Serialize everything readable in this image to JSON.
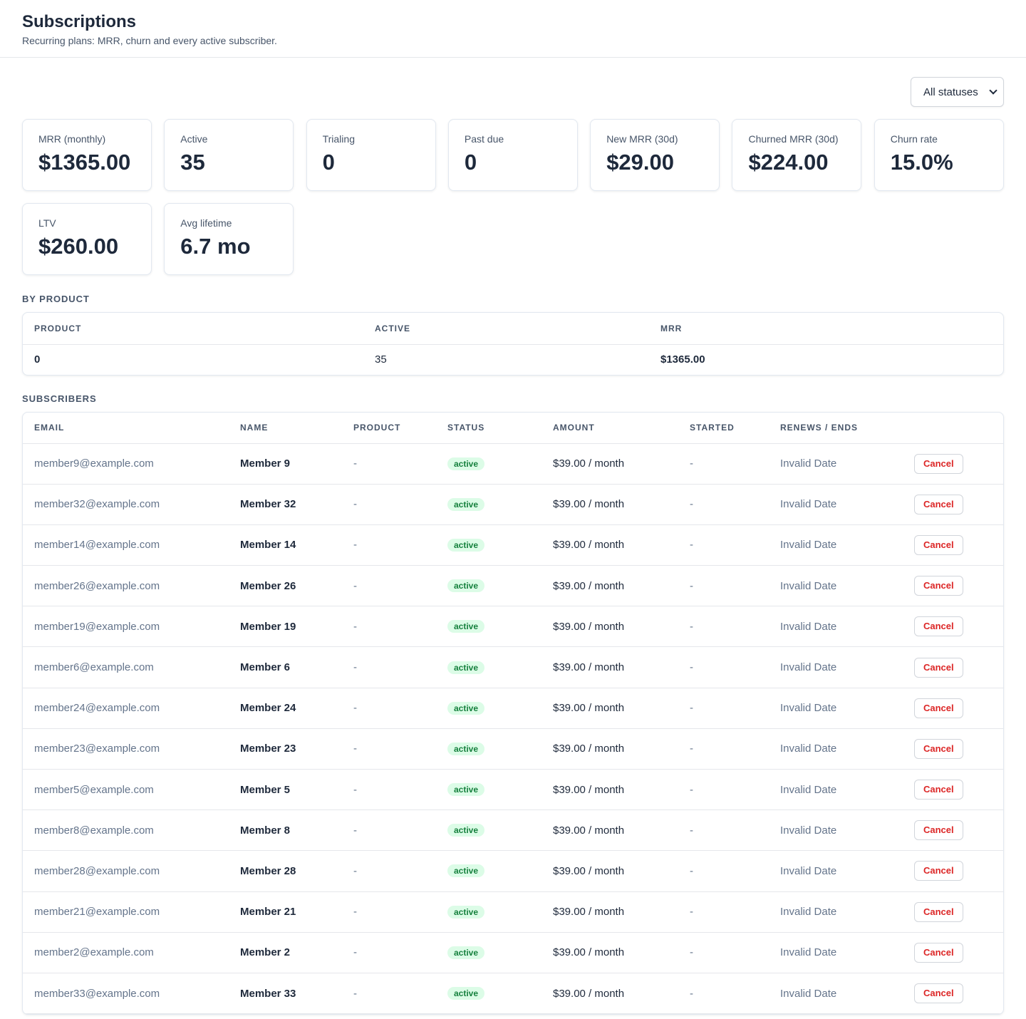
{
  "header": {
    "title": "Subscriptions",
    "subtitle": "Recurring plans: MRR, churn and every active subscriber."
  },
  "filter": {
    "selected": "All statuses"
  },
  "stats": [
    {
      "label": "MRR (monthly)",
      "value": "$1365.00"
    },
    {
      "label": "Active",
      "value": "35"
    },
    {
      "label": "Trialing",
      "value": "0"
    },
    {
      "label": "Past due",
      "value": "0"
    },
    {
      "label": "New MRR (30d)",
      "value": "$29.00"
    },
    {
      "label": "Churned MRR (30d)",
      "value": "$224.00"
    },
    {
      "label": "Churn rate",
      "value": "15.0%"
    },
    {
      "label": "LTV",
      "value": "$260.00"
    },
    {
      "label": "Avg lifetime",
      "value": "6.7 mo"
    }
  ],
  "by_product": {
    "title": "By product",
    "columns": [
      "Product",
      "Active",
      "MRR"
    ],
    "rows": [
      {
        "product": "0",
        "active": "35",
        "mrr": "$1365.00"
      }
    ]
  },
  "subscribers": {
    "title": "Subscribers",
    "columns": [
      "Email",
      "Name",
      "Product",
      "Status",
      "Amount",
      "Started",
      "Renews / Ends"
    ],
    "cancel_label": "Cancel",
    "rows": [
      {
        "email": "member9@example.com",
        "name": "Member 9",
        "product": "-",
        "status": "active",
        "amount": "$39.00 / month",
        "started": "-",
        "renews": "Invalid Date"
      },
      {
        "email": "member32@example.com",
        "name": "Member 32",
        "product": "-",
        "status": "active",
        "amount": "$39.00 / month",
        "started": "-",
        "renews": "Invalid Date"
      },
      {
        "email": "member14@example.com",
        "name": "Member 14",
        "product": "-",
        "status": "active",
        "amount": "$39.00 / month",
        "started": "-",
        "renews": "Invalid Date"
      },
      {
        "email": "member26@example.com",
        "name": "Member 26",
        "product": "-",
        "status": "active",
        "amount": "$39.00 / month",
        "started": "-",
        "renews": "Invalid Date"
      },
      {
        "email": "member19@example.com",
        "name": "Member 19",
        "product": "-",
        "status": "active",
        "amount": "$39.00 / month",
        "started": "-",
        "renews": "Invalid Date"
      },
      {
        "email": "member6@example.com",
        "name": "Member 6",
        "product": "-",
        "status": "active",
        "amount": "$39.00 / month",
        "started": "-",
        "renews": "Invalid Date"
      },
      {
        "email": "member24@example.com",
        "name": "Member 24",
        "product": "-",
        "status": "active",
        "amount": "$39.00 / month",
        "started": "-",
        "renews": "Invalid Date"
      },
      {
        "email": "member23@example.com",
        "name": "Member 23",
        "product": "-",
        "status": "active",
        "amount": "$39.00 / month",
        "started": "-",
        "renews": "Invalid Date"
      },
      {
        "email": "member5@example.com",
        "name": "Member 5",
        "product": "-",
        "status": "active",
        "amount": "$39.00 / month",
        "started": "-",
        "renews": "Invalid Date"
      },
      {
        "email": "member8@example.com",
        "name": "Member 8",
        "product": "-",
        "status": "active",
        "amount": "$39.00 / month",
        "started": "-",
        "renews": "Invalid Date"
      },
      {
        "email": "member28@example.com",
        "name": "Member 28",
        "product": "-",
        "status": "active",
        "amount": "$39.00 / month",
        "started": "-",
        "renews": "Invalid Date"
      },
      {
        "email": "member21@example.com",
        "name": "Member 21",
        "product": "-",
        "status": "active",
        "amount": "$39.00 / month",
        "started": "-",
        "renews": "Invalid Date"
      },
      {
        "email": "member2@example.com",
        "name": "Member 2",
        "product": "-",
        "status": "active",
        "amount": "$39.00 / month",
        "started": "-",
        "renews": "Invalid Date"
      },
      {
        "email": "member33@example.com",
        "name": "Member 33",
        "product": "-",
        "status": "active",
        "amount": "$39.00 / month",
        "started": "-",
        "renews": "Invalid Date"
      }
    ]
  }
}
